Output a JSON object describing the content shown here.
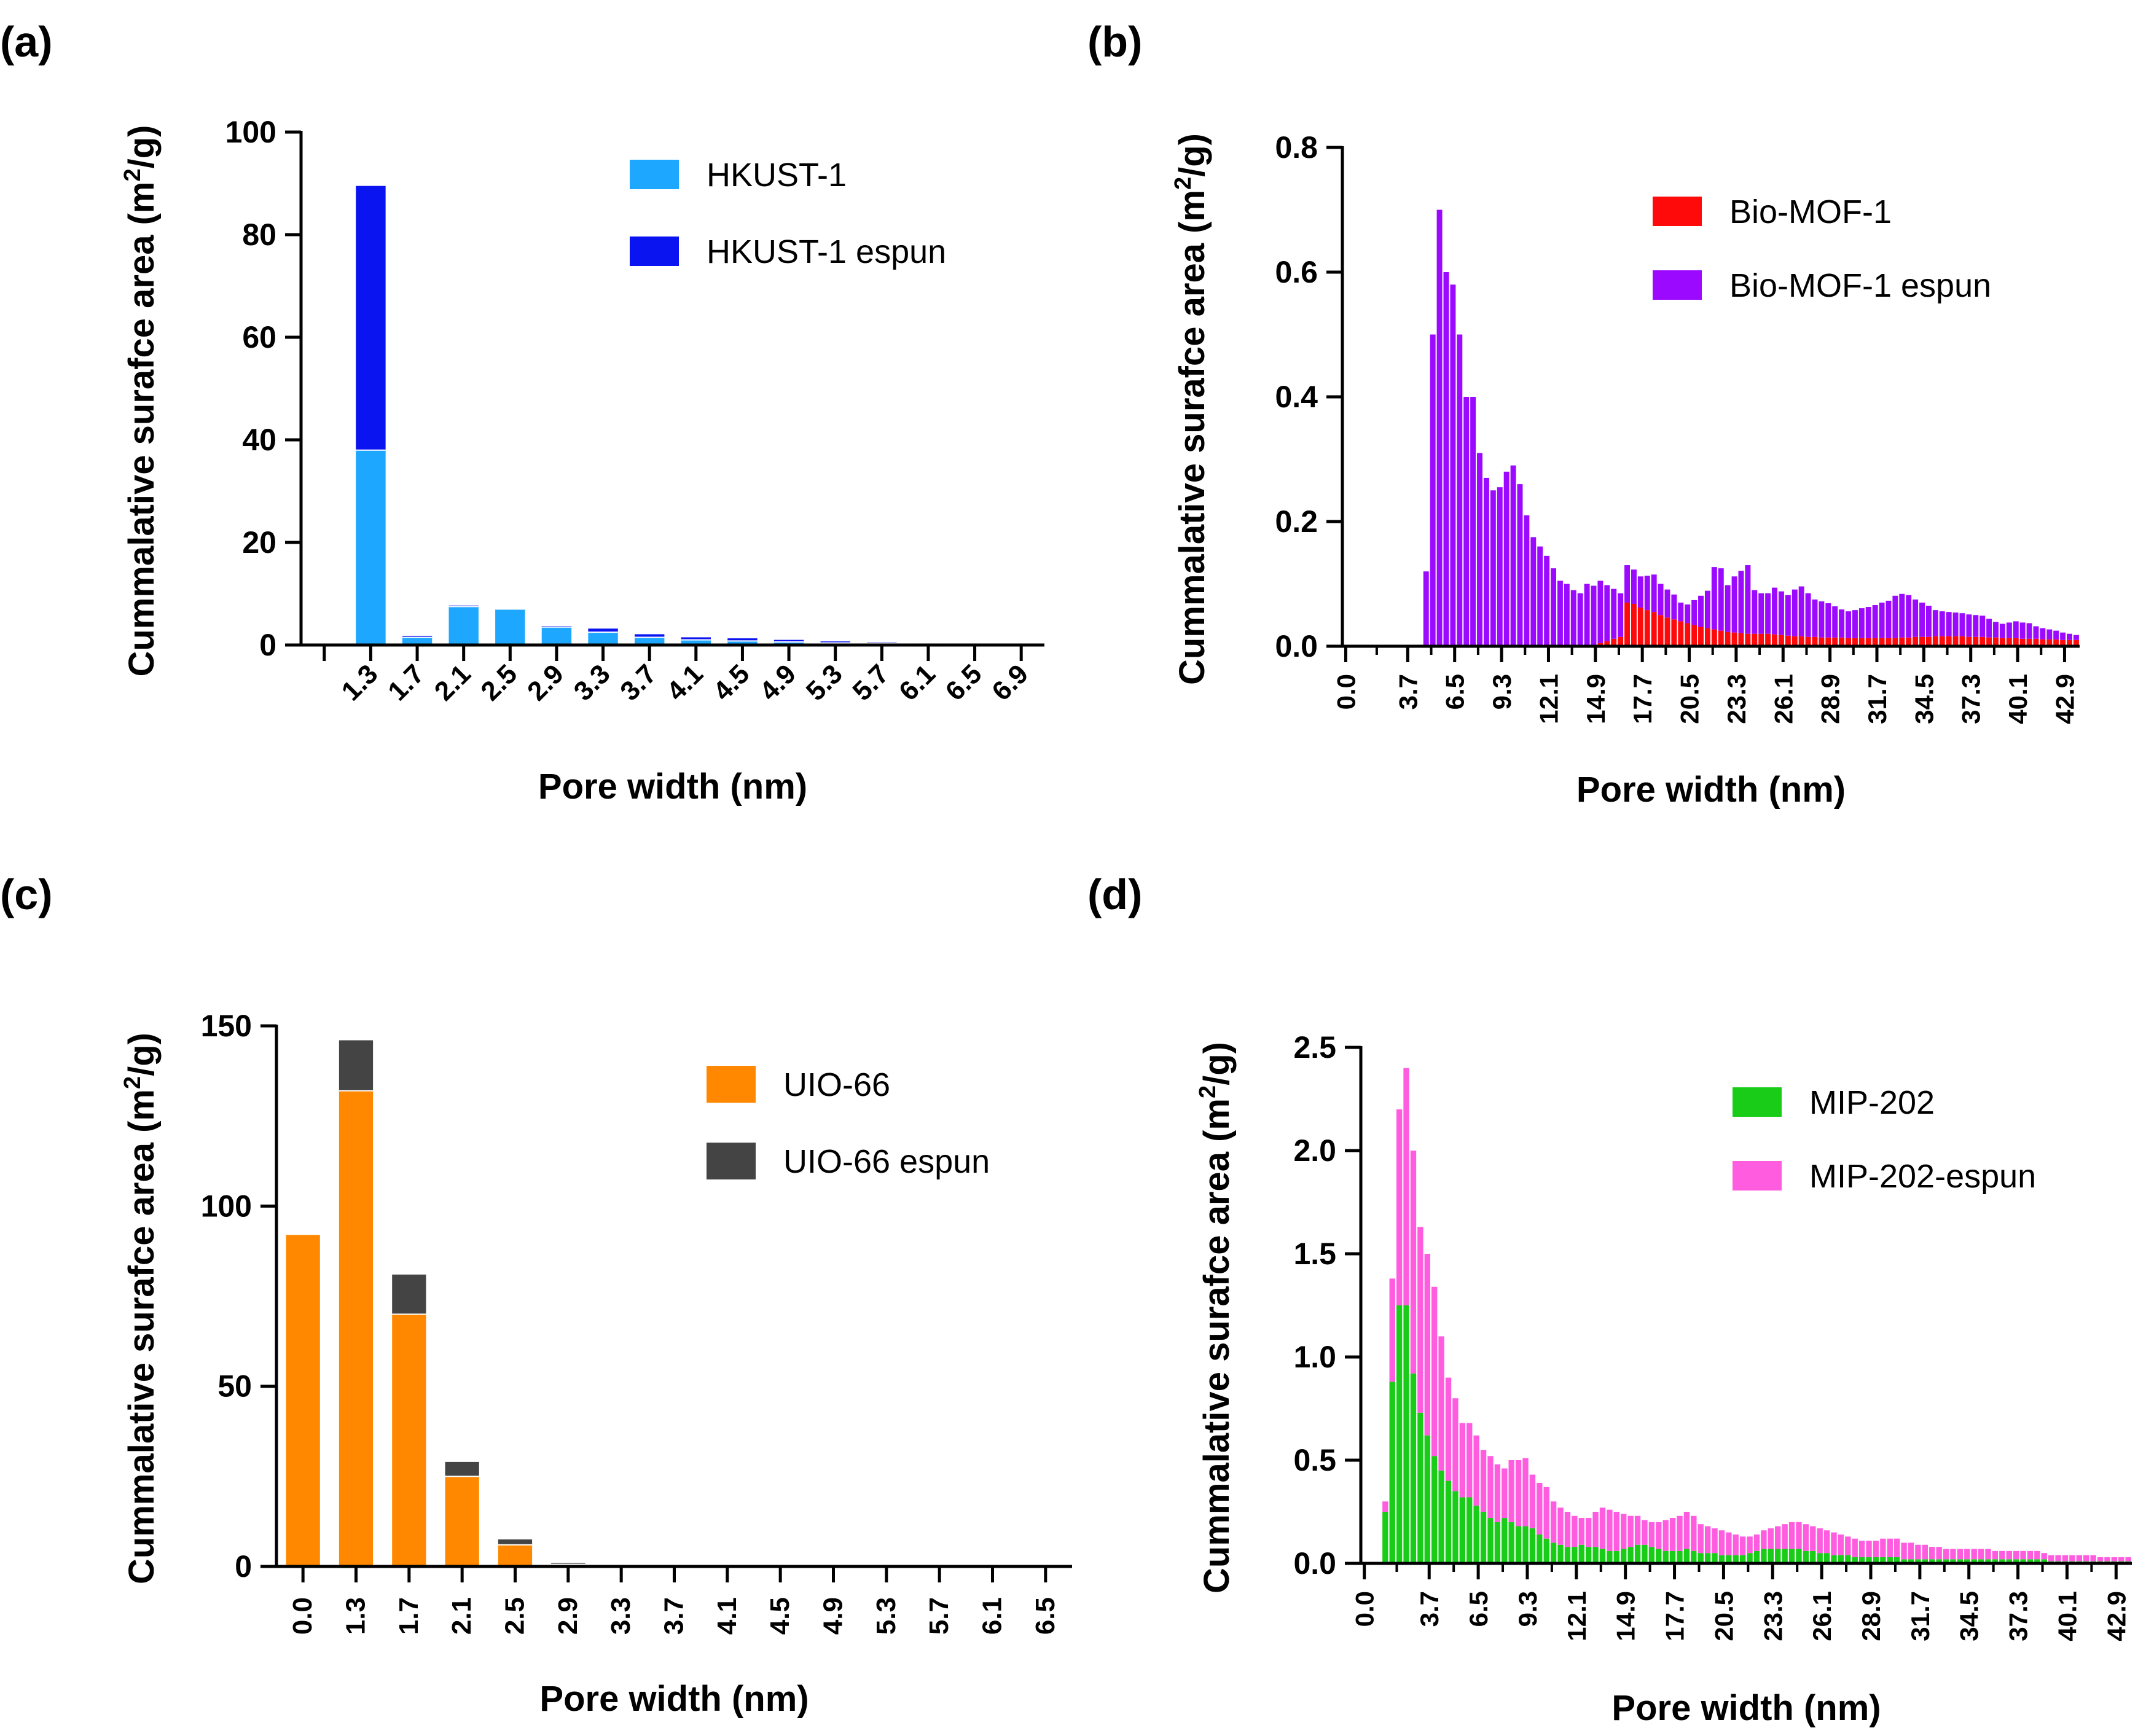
{
  "chart_data": [
    {
      "panel": "(a)",
      "type": "bar",
      "stacked": true,
      "title": "",
      "xlabel": "Pore width (nm)",
      "ylabel_main": "Cummalative surafce area (m",
      "ylabel_sup": "2",
      "ylabel_tail": "/g)",
      "ylim": [
        0,
        100
      ],
      "yticks": [
        "0",
        "20",
        "40",
        "60",
        "80",
        "100"
      ],
      "ytick_values": [
        0,
        20,
        40,
        60,
        80,
        100
      ],
      "categories": [
        "1.3",
        "1.7",
        "2.1",
        "2.5",
        "2.9",
        "3.3",
        "3.7",
        "4.1",
        "4.5",
        "4.9",
        "5.3",
        "5.7",
        "6.1",
        "6.5",
        "6.9"
      ],
      "series": [
        {
          "name": "HKUST-1",
          "color": "#1ea7ff",
          "values": [
            38,
            1.5,
            7.5,
            7,
            3.5,
            2.5,
            1.5,
            1.0,
            0.8,
            0.6,
            0.4,
            0.3,
            0.2,
            0.1,
            0.1
          ]
        },
        {
          "name": "HKUST-1 espun",
          "color": "#0a14f0",
          "values": [
            51.5,
            0.3,
            0.2,
            0.1,
            0.2,
            0.7,
            0.6,
            0.5,
            0.5,
            0.4,
            0.3,
            0.2,
            0.1,
            0.1,
            0.05
          ]
        }
      ],
      "legend_position": "top-right"
    },
    {
      "panel": "(b)",
      "type": "bar",
      "stacked": true,
      "title": "",
      "xlabel": "Pore width (nm)",
      "ylabel_main": "Cummalative surafce area (m",
      "ylabel_sup": "2",
      "ylabel_tail": "/g)",
      "ylim": [
        0,
        0.8
      ],
      "yticks": [
        "0.0",
        "0.2",
        "0.4",
        "0.6",
        "0.8"
      ],
      "ytick_values": [
        0,
        0.2,
        0.4,
        0.6,
        0.8
      ],
      "x_start": 0.0,
      "x_step": 0.4,
      "n_bins": 110,
      "xtick_labels": [
        "0.0",
        "3.7",
        "6.5",
        "9.3",
        "12.1",
        "14.9",
        "17.7",
        "20.5",
        "23.3",
        "26.1",
        "28.9",
        "31.7",
        "34.5",
        "37.3",
        "40.1",
        "42.9"
      ],
      "series": [
        {
          "name": "Bio-MOF-1",
          "color": "#ff0a0a",
          "values": [
            0,
            0,
            0,
            0,
            0,
            0,
            0,
            0,
            0,
            0,
            0,
            0,
            0,
            0,
            0,
            0,
            0,
            0,
            0,
            0,
            0,
            0,
            0,
            0,
            0,
            0,
            0,
            0,
            0,
            0,
            0,
            0,
            0,
            0,
            0,
            0,
            0,
            0,
            0.005,
            0.008,
            0.012,
            0.015,
            0.07,
            0.068,
            0.062,
            0.058,
            0.055,
            0.05,
            0.046,
            0.043,
            0.04,
            0.037,
            0.034,
            0.031,
            0.029,
            0.027,
            0.025,
            0.023,
            0.022,
            0.021,
            0.02,
            0.02,
            0.02,
            0.02,
            0.019,
            0.018,
            0.017,
            0.016,
            0.016,
            0.015,
            0.015,
            0.014,
            0.014,
            0.014,
            0.014,
            0.013,
            0.013,
            0.013,
            0.013,
            0.013,
            0.013,
            0.013,
            0.013,
            0.014,
            0.014,
            0.015,
            0.015,
            0.015,
            0.016,
            0.016,
            0.016,
            0.016,
            0.016,
            0.015,
            0.015,
            0.015,
            0.014,
            0.014,
            0.013,
            0.013,
            0.013,
            0.012,
            0.012,
            0.012,
            0.011,
            0.011,
            0.011,
            0.01,
            0.01,
            0.01
          ]
        },
        {
          "name": "Bio-MOF-1 espun",
          "color": "#9b0aff",
          "values": [
            0,
            0,
            0,
            0,
            0,
            0,
            0,
            0,
            0,
            0,
            0,
            0,
            0.12,
            0.5,
            0.7,
            0.6,
            0.58,
            0.5,
            0.4,
            0.4,
            0.31,
            0.27,
            0.25,
            0.255,
            0.28,
            0.29,
            0.26,
            0.21,
            0.175,
            0.16,
            0.145,
            0.125,
            0.105,
            0.1,
            0.09,
            0.085,
            0.1,
            0.097,
            0.1,
            0.09,
            0.08,
            0.07,
            0.06,
            0.055,
            0.05,
            0.055,
            0.06,
            0.05,
            0.045,
            0.04,
            0.03,
            0.03,
            0.04,
            0.05,
            0.06,
            0.1,
            0.1,
            0.075,
            0.09,
            0.1,
            0.11,
            0.07,
            0.065,
            0.065,
            0.075,
            0.07,
            0.065,
            0.075,
            0.08,
            0.07,
            0.06,
            0.058,
            0.055,
            0.05,
            0.045,
            0.043,
            0.045,
            0.048,
            0.05,
            0.053,
            0.057,
            0.06,
            0.068,
            0.07,
            0.068,
            0.06,
            0.055,
            0.05,
            0.042,
            0.04,
            0.039,
            0.038,
            0.037,
            0.036,
            0.035,
            0.034,
            0.03,
            0.025,
            0.023,
            0.025,
            0.027,
            0.026,
            0.025,
            0.02,
            0.018,
            0.016,
            0.014,
            0.012,
            0.01,
            0.008
          ]
        }
      ],
      "legend_position": "top-right"
    },
    {
      "panel": "(c)",
      "type": "bar",
      "stacked": true,
      "title": "",
      "xlabel": "Pore width (nm)",
      "ylabel_main": "Cummalative surafce area (m",
      "ylabel_sup": "2",
      "ylabel_tail": "/g)",
      "ylim": [
        0,
        150
      ],
      "yticks": [
        "0",
        "50",
        "100",
        "150"
      ],
      "ytick_values": [
        0,
        50,
        100,
        150
      ],
      "categories": [
        "0.0",
        "1.3",
        "1.7",
        "2.1",
        "2.5",
        "2.9",
        "3.3",
        "3.7",
        "4.1",
        "4.5",
        "4.9",
        "5.3",
        "5.7",
        "6.1",
        "6.5"
      ],
      "series": [
        {
          "name": "UIO-66",
          "color": "#ff8800",
          "values": [
            92,
            132,
            70,
            25,
            6,
            0.6,
            0.2,
            0.1,
            0.1,
            0.05,
            0,
            0,
            0,
            0,
            0
          ]
        },
        {
          "name": "UIO-66 espun",
          "color": "#444444",
          "values": [
            0,
            14,
            11,
            4,
            1.5,
            0.4,
            0.2,
            0.1,
            0.05,
            0.05,
            0,
            0,
            0,
            0,
            0
          ]
        }
      ],
      "legend_position": "top-right"
    },
    {
      "panel": "(d)",
      "type": "bar",
      "stacked": true,
      "title": "",
      "xlabel": "Pore width (nm)",
      "ylabel_main": "Cummalative surafce area (m",
      "ylabel_sup": "2",
      "ylabel_tail": "/g)",
      "ylim": [
        0,
        2.5
      ],
      "yticks": [
        "0.0",
        "0.5",
        "1.0",
        "1.5",
        "2.0",
        "2.5"
      ],
      "ytick_values": [
        0,
        0.5,
        1.0,
        1.5,
        2.0,
        2.5
      ],
      "x_start": 0.0,
      "x_step": 0.4,
      "n_bins": 110,
      "xtick_labels": [
        "0.0",
        "3.7",
        "6.5",
        "9.3",
        "12.1",
        "14.9",
        "17.7",
        "20.5",
        "23.3",
        "26.1",
        "28.9",
        "31.7",
        "34.5",
        "37.3",
        "40.1",
        "42.9"
      ],
      "series": [
        {
          "name": "MIP-202",
          "color": "#18cc18",
          "values": [
            0,
            0,
            0,
            0.25,
            0.88,
            1.25,
            1.25,
            0.92,
            0.73,
            0.62,
            0.52,
            0.45,
            0.4,
            0.35,
            0.32,
            0.32,
            0.28,
            0.25,
            0.22,
            0.2,
            0.22,
            0.2,
            0.18,
            0.18,
            0.17,
            0.14,
            0.12,
            0.1,
            0.09,
            0.08,
            0.08,
            0.09,
            0.08,
            0.08,
            0.07,
            0.06,
            0.06,
            0.07,
            0.08,
            0.09,
            0.09,
            0.08,
            0.07,
            0.06,
            0.06,
            0.06,
            0.07,
            0.06,
            0.05,
            0.05,
            0.05,
            0.04,
            0.04,
            0.04,
            0.04,
            0.05,
            0.06,
            0.07,
            0.07,
            0.07,
            0.07,
            0.07,
            0.07,
            0.06,
            0.06,
            0.05,
            0.05,
            0.04,
            0.04,
            0.04,
            0.03,
            0.03,
            0.03,
            0.03,
            0.03,
            0.03,
            0.03,
            0.02,
            0.02,
            0.02,
            0.02,
            0.02,
            0.02,
            0.02,
            0.02,
            0.02,
            0.02,
            0.02,
            0.02,
            0.02,
            0.02,
            0.02,
            0.02,
            0.02,
            0.02,
            0.02,
            0.02,
            0.02,
            0.01,
            0.01,
            0.01,
            0.01,
            0.01,
            0.01,
            0.01,
            0.01,
            0.01,
            0.01,
            0.01,
            0.01
          ]
        },
        {
          "name": "MIP-202-espun",
          "color": "#ff5ce0",
          "values": [
            0,
            0,
            0,
            0.05,
            0.5,
            0.95,
            1.15,
            1.08,
            0.9,
            0.88,
            0.82,
            0.65,
            0.5,
            0.45,
            0.36,
            0.36,
            0.34,
            0.3,
            0.3,
            0.28,
            0.24,
            0.3,
            0.32,
            0.33,
            0.26,
            0.25,
            0.25,
            0.2,
            0.18,
            0.17,
            0.15,
            0.13,
            0.14,
            0.17,
            0.2,
            0.2,
            0.19,
            0.17,
            0.15,
            0.14,
            0.12,
            0.12,
            0.13,
            0.15,
            0.16,
            0.17,
            0.18,
            0.17,
            0.14,
            0.13,
            0.12,
            0.12,
            0.11,
            0.1,
            0.09,
            0.08,
            0.08,
            0.09,
            0.1,
            0.11,
            0.12,
            0.13,
            0.13,
            0.13,
            0.12,
            0.12,
            0.11,
            0.11,
            0.1,
            0.09,
            0.09,
            0.08,
            0.08,
            0.08,
            0.09,
            0.09,
            0.09,
            0.08,
            0.08,
            0.07,
            0.07,
            0.06,
            0.06,
            0.05,
            0.05,
            0.05,
            0.05,
            0.05,
            0.05,
            0.05,
            0.04,
            0.04,
            0.04,
            0.04,
            0.04,
            0.04,
            0.04,
            0.03,
            0.03,
            0.03,
            0.03,
            0.03,
            0.03,
            0.03,
            0.03,
            0.02,
            0.02,
            0.02,
            0.02,
            0.02
          ]
        }
      ],
      "legend_position": "top-right"
    }
  ]
}
